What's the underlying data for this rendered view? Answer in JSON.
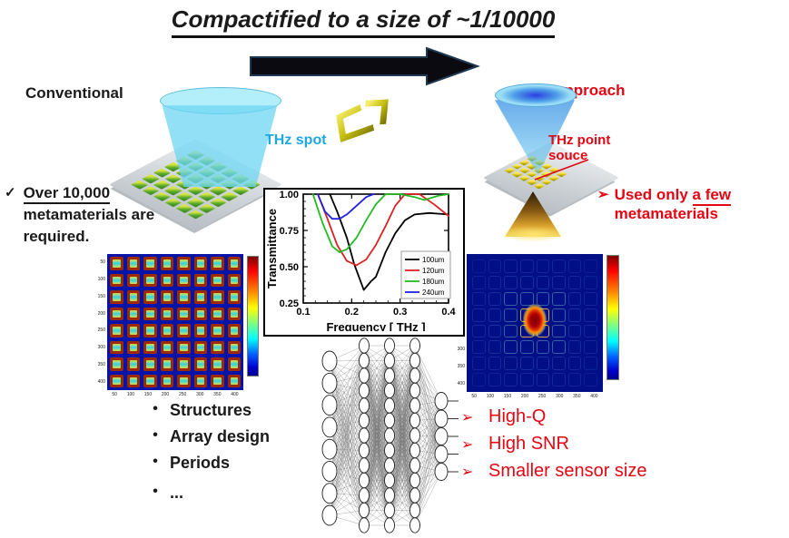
{
  "colors": {
    "red": "#e30613",
    "cyan": "#1ea7e0",
    "gold": "#c9b70b"
  },
  "header": {
    "title": "Compactified to a size of ~1/10000"
  },
  "labels": {
    "conventional": "Conventional",
    "our_approach": "Our approach",
    "thz_spot": "THz spot",
    "thz_point_line1": "THz point",
    "thz_point_line2": "souce"
  },
  "left_note": {
    "check": "✓",
    "underlined": "Over 10,000",
    "line2": "metamaterials are",
    "line3": "required."
  },
  "right_note": {
    "arrow": "➢",
    "prefix": "Used only ",
    "underlined": "a few",
    "line2": "metamaterials"
  },
  "design_params": {
    "bullet": "•",
    "items": [
      "Structures",
      "Array design",
      "Periods",
      "..."
    ]
  },
  "benefits": {
    "bullet": "➢",
    "items": [
      "High-Q",
      "High SNR",
      "Smaller sensor size"
    ]
  },
  "chart_data": {
    "type": "line",
    "title": "",
    "xlabel": "Frequency [ THz ]",
    "ylabel": "Transmittance",
    "xlim": [
      0.1,
      0.4
    ],
    "ylim": [
      0.25,
      1.0
    ],
    "x_ticks": [
      0.1,
      0.2,
      0.3,
      0.4
    ],
    "x_tick_labels": [
      "0.1",
      "0.2",
      "0.3",
      "0.4"
    ],
    "y_ticks": [
      0.25,
      0.5,
      0.75,
      1.0
    ],
    "y_tick_labels": [
      "0.25",
      "0.50",
      "0.75",
      "1.00"
    ],
    "grid": false,
    "legend_position": "lower right",
    "series": [
      {
        "name": "100um",
        "color": "#000000",
        "x": [
          0.155,
          0.17,
          0.19,
          0.205,
          0.225,
          0.24,
          0.25,
          0.27,
          0.29,
          0.31,
          0.33,
          0.36,
          0.4
        ],
        "y": [
          1.0,
          0.88,
          0.7,
          0.52,
          0.34,
          0.4,
          0.43,
          0.6,
          0.73,
          0.82,
          0.86,
          0.87,
          0.86
        ]
      },
      {
        "name": "120um",
        "color": "#dd2222",
        "x": [
          0.13,
          0.15,
          0.17,
          0.19,
          0.21,
          0.23,
          0.25,
          0.27,
          0.29,
          0.31,
          0.34,
          0.37,
          0.4
        ],
        "y": [
          1.0,
          0.83,
          0.65,
          0.54,
          0.51,
          0.55,
          0.65,
          0.78,
          0.92,
          1.0,
          1.0,
          0.93,
          0.85
        ]
      },
      {
        "name": "180um",
        "color": "#22bb22",
        "x": [
          0.12,
          0.14,
          0.16,
          0.175,
          0.19,
          0.21,
          0.23,
          0.25,
          0.27,
          0.3,
          0.33,
          0.35,
          0.38,
          0.4
        ],
        "y": [
          1.0,
          0.8,
          0.64,
          0.6,
          0.62,
          0.7,
          0.82,
          0.93,
          1.0,
          1.0,
          0.98,
          0.96,
          0.99,
          1.0
        ]
      },
      {
        "name": "240um",
        "color": "#2222dd",
        "x": [
          0.13,
          0.145,
          0.16,
          0.175,
          0.19,
          0.21,
          0.23,
          0.245
        ],
        "y": [
          1.0,
          0.88,
          0.83,
          0.83,
          0.86,
          0.92,
          0.98,
          1.0
        ]
      }
    ]
  },
  "left_heatmap": {
    "rows": 8,
    "cols": 8,
    "x_tick_labels": [
      "50",
      "100",
      "150",
      "200",
      "250",
      "300",
      "350",
      "400"
    ],
    "y_tick_labels": [
      "50",
      "100",
      "150",
      "200",
      "250",
      "300",
      "350",
      "400"
    ]
  },
  "right_heatmap": {
    "rows": 8,
    "cols": 8,
    "x_tick_labels": [
      "50",
      "100",
      "150",
      "200",
      "250",
      "300",
      "350",
      "400"
    ],
    "y_tick_labels": [
      "50",
      "100",
      "150",
      "200",
      "250",
      "300",
      "350",
      "400"
    ]
  },
  "nn": {
    "layers": [
      8,
      13,
      13,
      13,
      5
    ]
  }
}
